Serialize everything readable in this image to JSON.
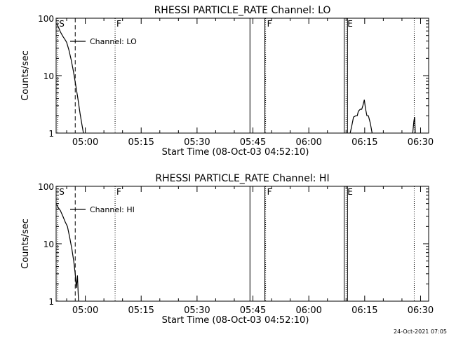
{
  "footer_timestamp": "24-Oct-2021 07:05",
  "chart_data": [
    {
      "type": "line",
      "title": "RHESSI PARTICLE_RATE Channel: LO",
      "xlabel": "Start Time (08-Oct-03 04:52:10)",
      "ylabel": "Counts/sec",
      "yscale": "log",
      "ylim": [
        1,
        100
      ],
      "xlim_minutes": [
        52.17,
        152.17
      ],
      "x_ticks": [
        {
          "t": 60,
          "label": "05:00"
        },
        {
          "t": 75,
          "label": "05:15"
        },
        {
          "t": 90,
          "label": "05:30"
        },
        {
          "t": 105,
          "label": "05:45"
        },
        {
          "t": 120,
          "label": "06:00"
        },
        {
          "t": 135,
          "label": "06:15"
        },
        {
          "t": 150,
          "label": "06:30"
        }
      ],
      "y_ticks": [
        {
          "v": 1,
          "label": "1"
        },
        {
          "v": 10,
          "label": "10"
        },
        {
          "v": 100,
          "label": "100"
        }
      ],
      "legend": "Channel: LO",
      "markers": [
        {
          "t": 52.6,
          "label": "S",
          "style": "dotted"
        },
        {
          "t": 57.3,
          "label": "",
          "style": "dashed"
        },
        {
          "t": 68.0,
          "label": "F",
          "style": "dotted"
        },
        {
          "t": 108.4,
          "label": "F",
          "style": "dotted"
        },
        {
          "t": 130.0,
          "label": "E",
          "style": "dotted"
        },
        {
          "t": 148.3,
          "label": "",
          "style": "dotted"
        }
      ],
      "gaps": [
        [
          104.2,
          108.2
        ],
        [
          129.5,
          130.4
        ]
      ],
      "series": [
        {
          "segments": [
            [
              [
                52.3,
                80
              ],
              [
                52.8,
                70
              ],
              [
                53.3,
                58
              ],
              [
                54.0,
                48
              ],
              [
                54.5,
                43
              ],
              [
                55.0,
                38
              ],
              [
                55.6,
                28
              ],
              [
                56.2,
                19
              ],
              [
                56.8,
                12
              ],
              [
                57.4,
                7
              ],
              [
                58.0,
                4
              ],
              [
                58.6,
                2.2
              ],
              [
                59.1,
                1.4
              ],
              [
                59.5,
                1
              ]
            ],
            [
              [
                131.1,
                1
              ],
              [
                131.5,
                1.3
              ],
              [
                132.0,
                1.9
              ],
              [
                132.6,
                2.0
              ],
              [
                133.0,
                2.0
              ],
              [
                133.3,
                2.4
              ],
              [
                133.8,
                2.6
              ],
              [
                134.2,
                2.6
              ],
              [
                134.5,
                3.0
              ],
              [
                134.9,
                3.8
              ],
              [
                135.2,
                2.7
              ],
              [
                135.6,
                2.0
              ],
              [
                136.0,
                2.0
              ],
              [
                136.5,
                1.5
              ],
              [
                137.0,
                1
              ]
            ],
            [
              [
                147.9,
                1
              ],
              [
                148.2,
                1.6
              ],
              [
                148.4,
                1.9
              ],
              [
                148.6,
                1
              ]
            ]
          ]
        }
      ]
    },
    {
      "type": "line",
      "title": "RHESSI PARTICLE_RATE Channel: HI",
      "xlabel": "Start Time (08-Oct-03 04:52:10)",
      "ylabel": "Counts/sec",
      "yscale": "log",
      "ylim": [
        1,
        100
      ],
      "xlim_minutes": [
        52.17,
        152.17
      ],
      "x_ticks": [
        {
          "t": 60,
          "label": "05:00"
        },
        {
          "t": 75,
          "label": "05:15"
        },
        {
          "t": 90,
          "label": "05:30"
        },
        {
          "t": 105,
          "label": "05:45"
        },
        {
          "t": 120,
          "label": "06:00"
        },
        {
          "t": 135,
          "label": "06:15"
        },
        {
          "t": 150,
          "label": "06:30"
        }
      ],
      "y_ticks": [
        {
          "v": 1,
          "label": "1"
        },
        {
          "v": 10,
          "label": "10"
        },
        {
          "v": 100,
          "label": "100"
        }
      ],
      "legend": "Channel: HI",
      "markers": [
        {
          "t": 52.6,
          "label": "S",
          "style": "dotted"
        },
        {
          "t": 57.3,
          "label": "",
          "style": "dashed"
        },
        {
          "t": 68.0,
          "label": "F",
          "style": "dotted"
        },
        {
          "t": 108.4,
          "label": "F",
          "style": "dotted"
        },
        {
          "t": 130.0,
          "label": "E",
          "style": "dotted"
        },
        {
          "t": 148.3,
          "label": "",
          "style": "dotted"
        }
      ],
      "gaps": [
        [
          104.2,
          108.2
        ],
        [
          129.5,
          130.4
        ]
      ],
      "series": [
        {
          "segments": [
            [
              [
                52.3,
                48
              ],
              [
                52.8,
                42
              ],
              [
                53.3,
                38
              ],
              [
                54.0,
                30
              ],
              [
                54.6,
                24
              ],
              [
                55.2,
                20
              ],
              [
                55.8,
                13
              ],
              [
                56.4,
                8
              ],
              [
                56.9,
                5
              ],
              [
                57.3,
                3
              ],
              [
                57.6,
                1.7
              ],
              [
                57.9,
                2.8
              ],
              [
                58.1,
                1.3
              ],
              [
                58.2,
                1
              ]
            ]
          ]
        }
      ]
    }
  ]
}
